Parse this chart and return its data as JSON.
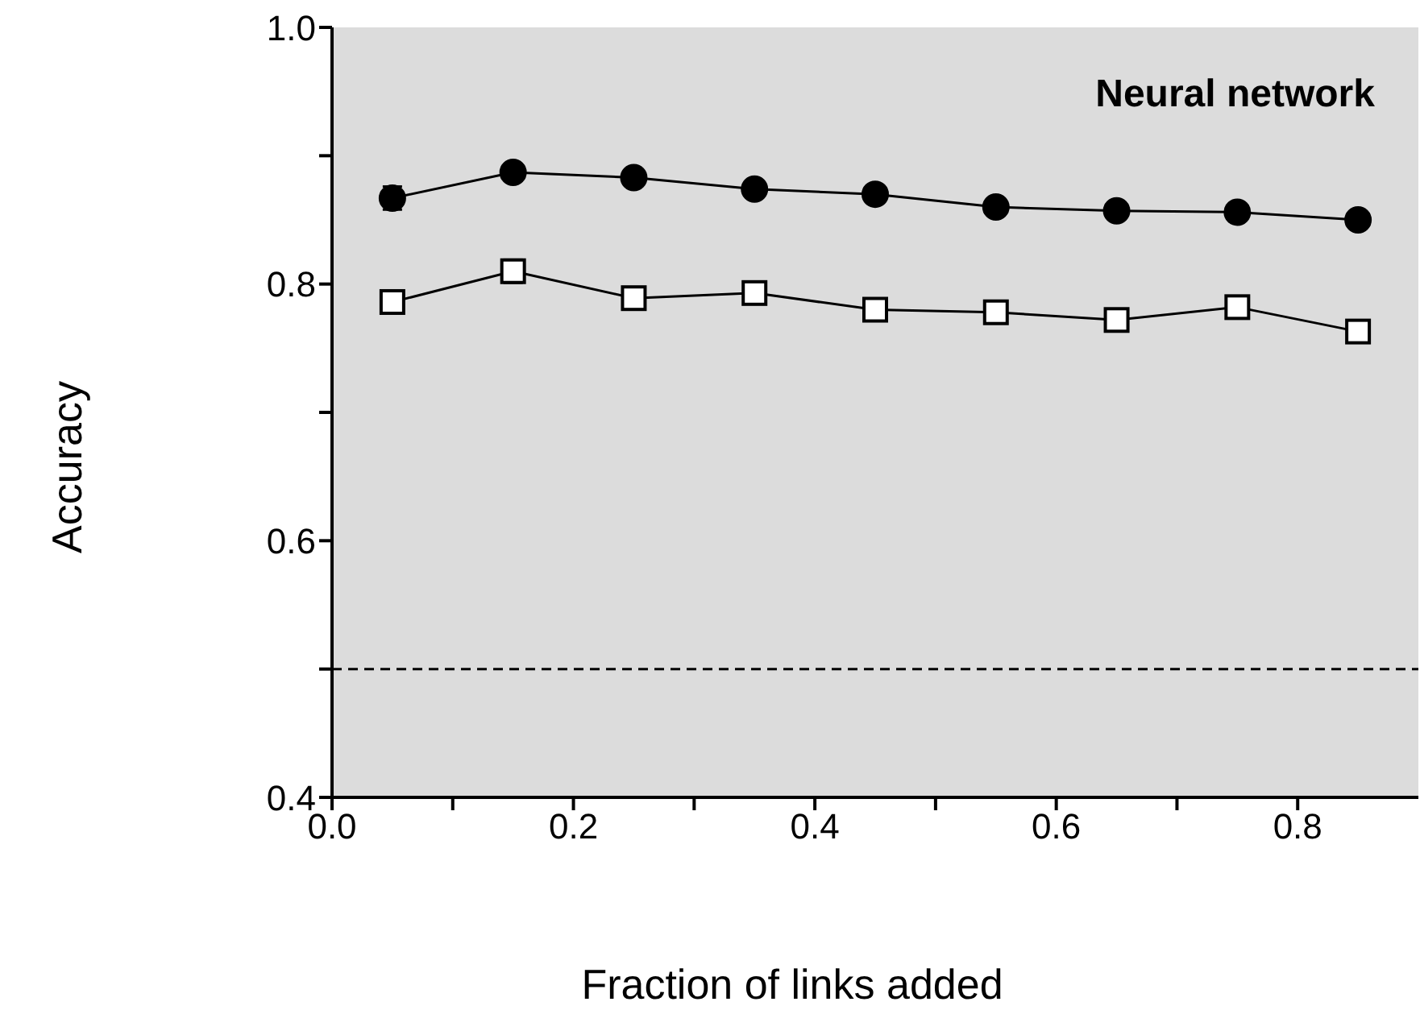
{
  "chart_data": {
    "type": "line",
    "title": "Neural network",
    "xlabel": "Fraction of links added",
    "ylabel": "Accuracy",
    "x": [
      0.05,
      0.15,
      0.25,
      0.35,
      0.45,
      0.55,
      0.65,
      0.75,
      0.85
    ],
    "series": [
      {
        "color": "#000000",
        "marker": "circle",
        "values": [
          0.867,
          0.887,
          0.883,
          0.874,
          0.87,
          0.86,
          0.857,
          0.856,
          0.85
        ],
        "errors": [
          0.009,
          null,
          null,
          null,
          null,
          null,
          null,
          null,
          null
        ]
      },
      {
        "color": "#000000",
        "marker": "square",
        "values": [
          0.786,
          0.81,
          0.789,
          0.793,
          0.78,
          0.778,
          0.772,
          0.782,
          0.763
        ],
        "errors": [
          null,
          0.009,
          null,
          null,
          null,
          null,
          null,
          null,
          null
        ]
      }
    ],
    "xlim": [
      0,
      0.9
    ],
    "xticks": [
      {
        "value": 0,
        "label": "0.0"
      },
      {
        "value": 0.1,
        "label": null
      },
      0.2,
      {
        "value": 0.3,
        "label": null
      },
      0.4,
      {
        "value": 0.5,
        "label": null
      },
      0.6,
      {
        "value": 0.7,
        "label": null
      },
      0.8
    ],
    "ylim": [
      0.4,
      1.0
    ],
    "yticks": [
      0.4,
      {
        "value": 0.5,
        "label": null
      },
      0.6,
      {
        "value": 0.7,
        "label": null
      },
      0.8,
      {
        "value": 0.9,
        "label": null
      },
      {
        "value": 1,
        "label": "1.0"
      }
    ],
    "ref_lines": [
      {
        "axis": "y",
        "value": 0.5,
        "line_style": "dashed",
        "color": "#000000"
      }
    ],
    "line_style": "solid"
  }
}
